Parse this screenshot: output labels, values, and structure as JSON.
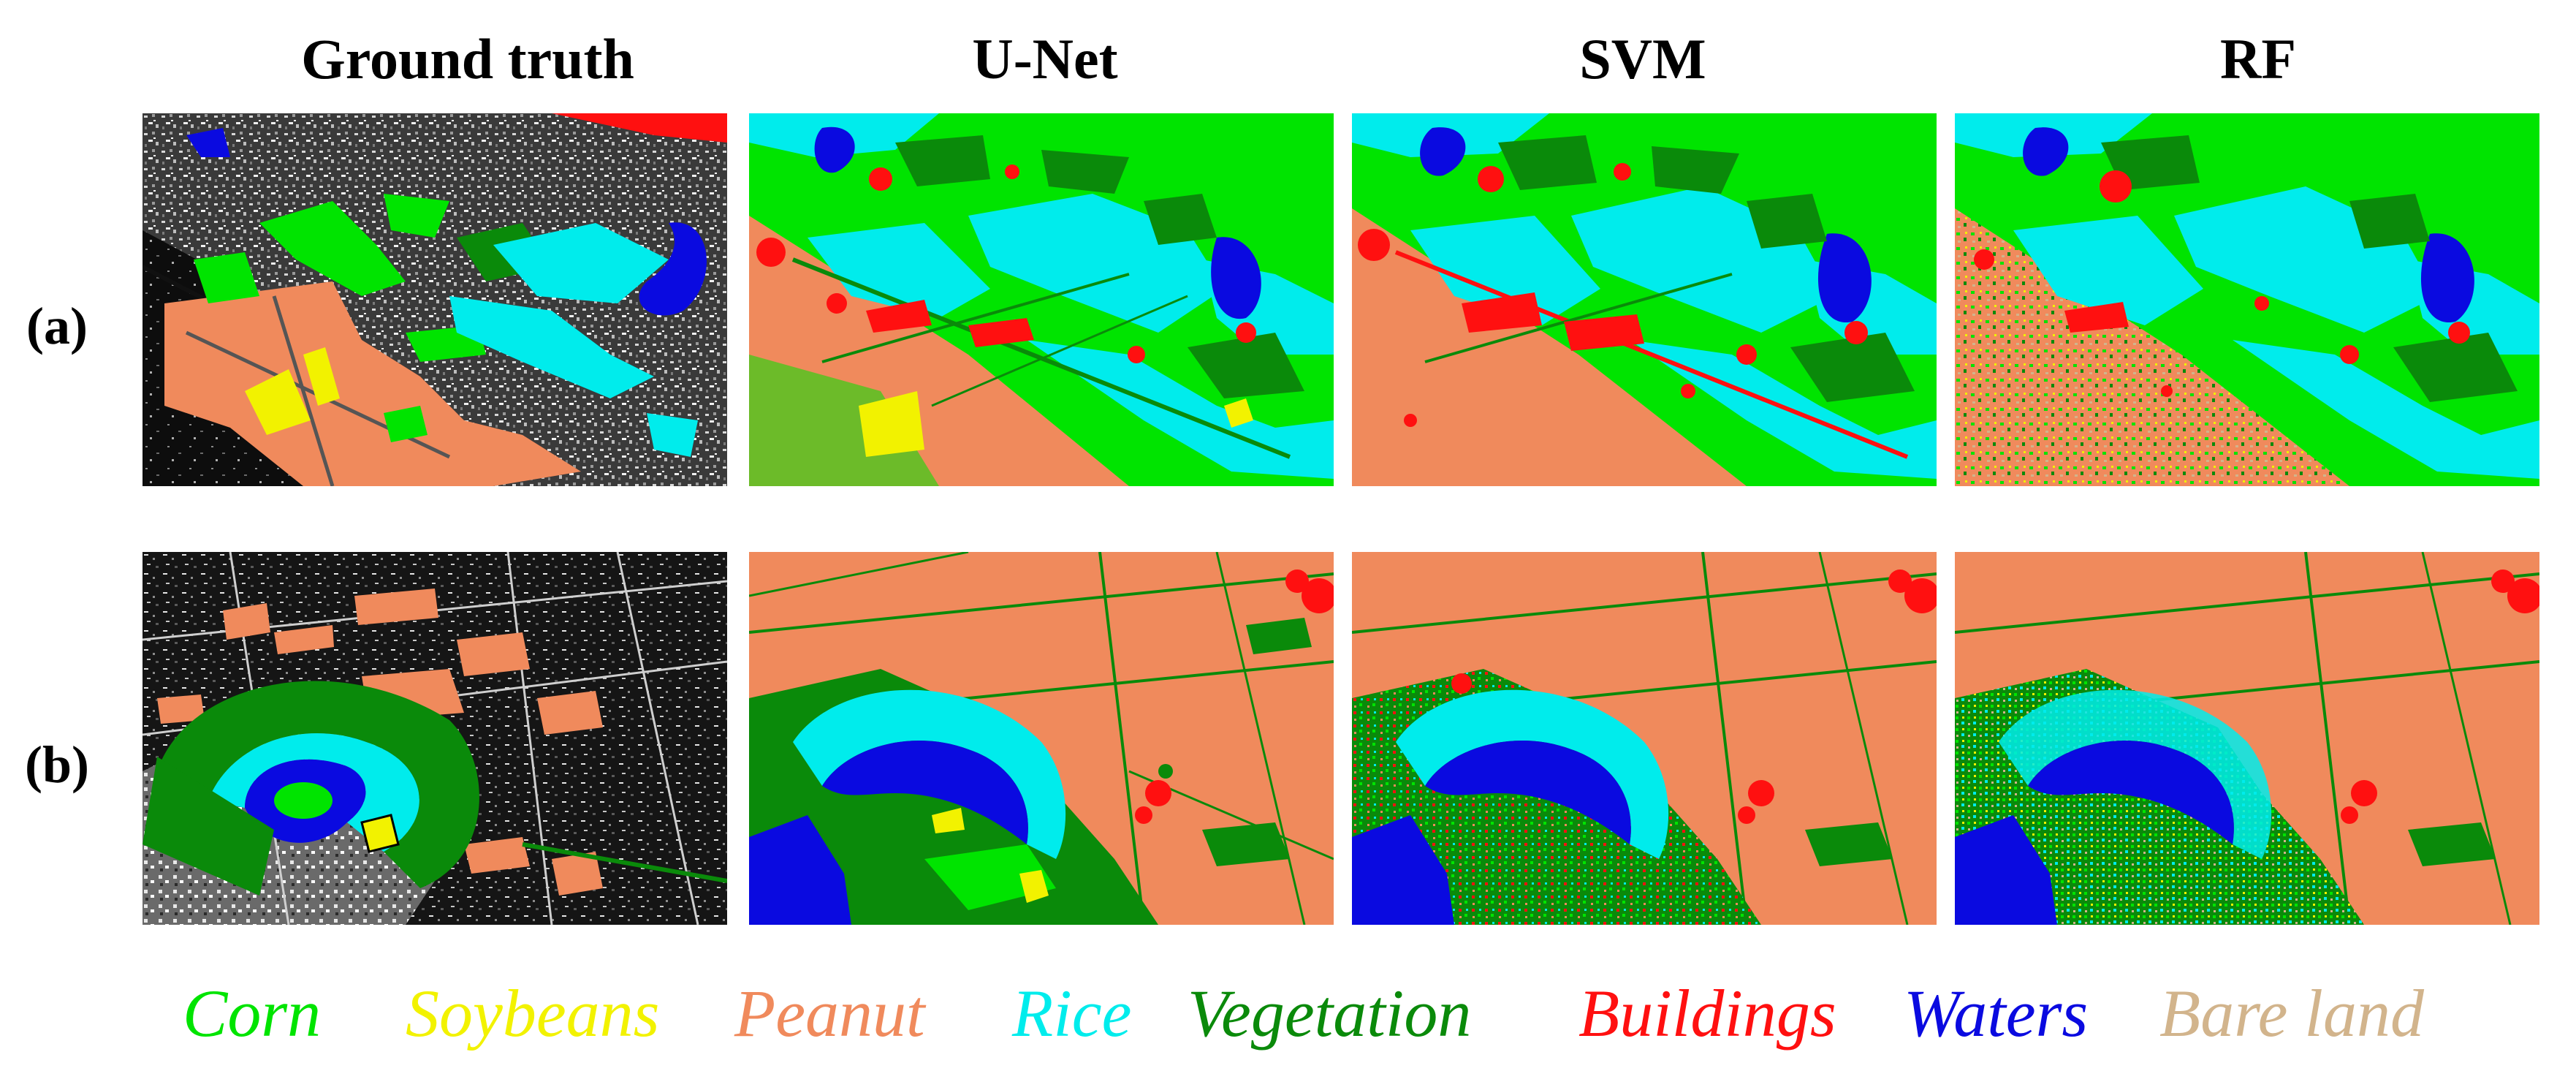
{
  "columns": [
    {
      "title": "Ground truth"
    },
    {
      "title": "U-Net"
    },
    {
      "title": "SVM"
    },
    {
      "title": "RF"
    }
  ],
  "rows": [
    {
      "label": "(a)"
    },
    {
      "label": "(b)"
    }
  ],
  "legend": [
    {
      "label": "Corn",
      "color": "#00e400"
    },
    {
      "label": "Soybeans",
      "color": "#f2f200"
    },
    {
      "label": "Peanut",
      "color": "#f08a5c"
    },
    {
      "label": "Rice",
      "color": "#00ecec"
    },
    {
      "label": "Vegetation",
      "color": "#0a8a0a"
    },
    {
      "label": "Buildings",
      "color": "#ff1010"
    },
    {
      "label": "Waters",
      "color": "#0a0ae0"
    },
    {
      "label": "Bare land",
      "color": "#d2b48c"
    }
  ]
}
